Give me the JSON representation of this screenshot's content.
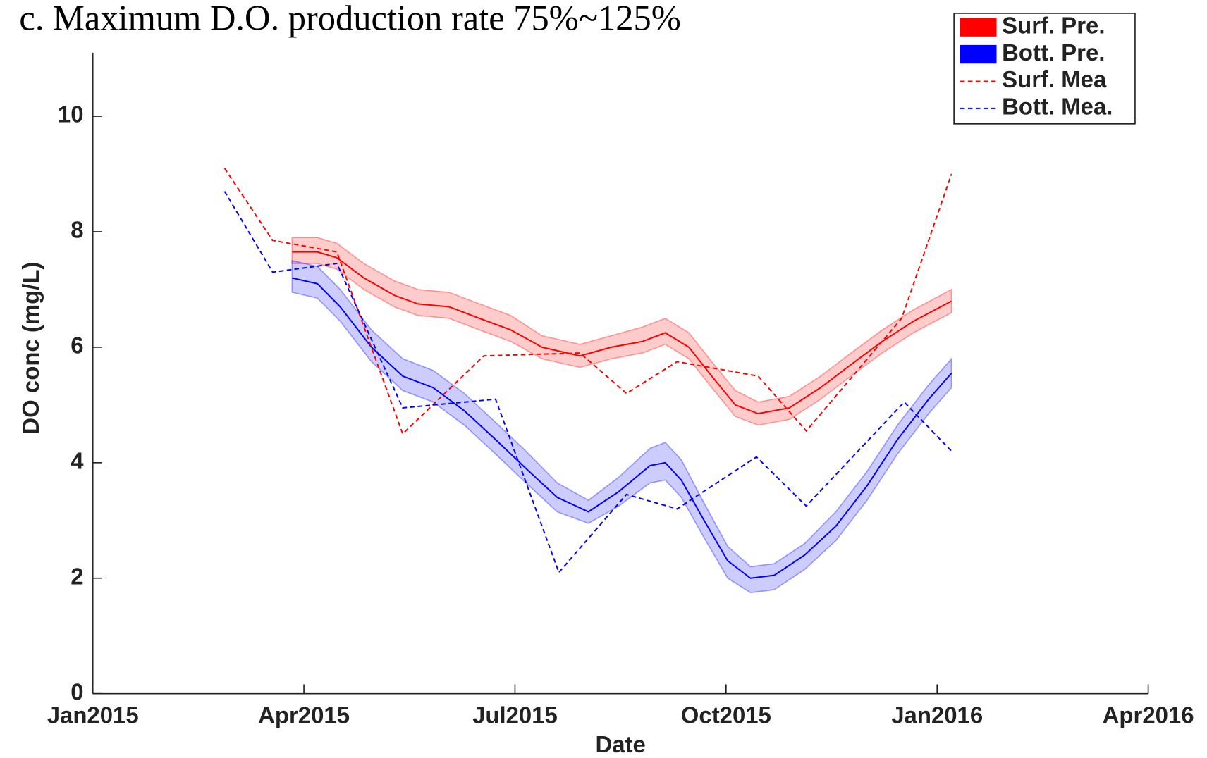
{
  "chart_data": {
    "type": "line",
    "title": "c. Maximum D.O. production rate 75%~125%",
    "xlabel": "Date",
    "ylabel": "DO conc (mg/L)",
    "xlim": [
      2015,
      2016.25
    ],
    "xticks": [
      {
        "value": 2015,
        "label": "Jan2015"
      },
      {
        "value": 2015.25,
        "label": "Apr2015"
      },
      {
        "value": 2015.5,
        "label": "Jul2015"
      },
      {
        "value": 2015.75,
        "label": "Oct2015"
      },
      {
        "value": 2016,
        "label": "Jan2016"
      },
      {
        "value": 2016.25,
        "label": "Apr2016"
      }
    ],
    "ylim": [
      0,
      11.1
    ],
    "yticks": [
      0,
      2,
      4,
      6,
      8,
      10
    ],
    "grid": false,
    "legend": "upper right",
    "series": [
      {
        "name": "Surf. Pre.",
        "color": "#ff0000",
        "style": "band",
        "x": [
          2015.236,
          2015.266,
          2015.289,
          2015.321,
          2015.357,
          2015.385,
          2015.422,
          2015.458,
          2015.495,
          2015.532,
          2015.577,
          2015.614,
          2015.651,
          2015.678,
          2015.706,
          2015.733,
          2015.761,
          2015.788,
          2015.825,
          2015.862,
          2015.898,
          2015.935,
          2015.972,
          2016.017
        ],
        "values": [
          7.65,
          7.65,
          7.55,
          7.2,
          6.9,
          6.75,
          6.7,
          6.5,
          6.3,
          6.0,
          5.85,
          6.0,
          6.1,
          6.25,
          6.0,
          5.5,
          5.0,
          4.85,
          4.95,
          5.3,
          5.7,
          6.1,
          6.45,
          6.8
        ],
        "lower": [
          7.45,
          7.45,
          7.35,
          7.0,
          6.7,
          6.55,
          6.5,
          6.3,
          6.1,
          5.8,
          5.65,
          5.8,
          5.9,
          6.05,
          5.8,
          5.3,
          4.8,
          4.65,
          4.75,
          5.1,
          5.5,
          5.9,
          6.25,
          6.6
        ],
        "upper": [
          7.9,
          7.9,
          7.8,
          7.45,
          7.15,
          7.0,
          6.95,
          6.75,
          6.55,
          6.2,
          6.05,
          6.2,
          6.35,
          6.5,
          6.25,
          5.75,
          5.25,
          5.05,
          5.15,
          5.5,
          5.9,
          6.3,
          6.65,
          7.0
        ]
      },
      {
        "name": "Bott. Pre.",
        "color": "#0000ff",
        "style": "band",
        "x": [
          2015.236,
          2015.266,
          2015.293,
          2015.33,
          2015.367,
          2015.403,
          2015.44,
          2015.477,
          2015.513,
          2015.55,
          2015.587,
          2015.623,
          2015.66,
          2015.678,
          2015.697,
          2015.724,
          2015.752,
          2015.779,
          2015.807,
          2015.843,
          2015.88,
          2015.917,
          2015.953,
          2015.99,
          2016.017
        ],
        "values": [
          7.2,
          7.1,
          6.7,
          6.0,
          5.5,
          5.3,
          4.9,
          4.4,
          3.9,
          3.4,
          3.15,
          3.5,
          3.95,
          4.0,
          3.7,
          3.0,
          2.3,
          2.0,
          2.05,
          2.4,
          2.9,
          3.6,
          4.4,
          5.1,
          5.55
        ],
        "lower": [
          6.95,
          6.85,
          6.45,
          5.75,
          5.25,
          5.05,
          4.65,
          4.15,
          3.65,
          3.15,
          2.95,
          3.25,
          3.65,
          3.7,
          3.4,
          2.7,
          2.0,
          1.75,
          1.8,
          2.15,
          2.65,
          3.35,
          4.15,
          4.85,
          5.3
        ],
        "upper": [
          7.5,
          7.4,
          7.0,
          6.3,
          5.8,
          5.6,
          5.2,
          4.7,
          4.2,
          3.65,
          3.35,
          3.75,
          4.25,
          4.35,
          4.05,
          3.3,
          2.55,
          2.2,
          2.25,
          2.6,
          3.15,
          3.85,
          4.65,
          5.35,
          5.8
        ]
      },
      {
        "name": "Surf. Mea",
        "color": "#ff0000",
        "style": "dashed",
        "x": [
          2015.156,
          2015.213,
          2015.289,
          2015.367,
          2015.463,
          2015.577,
          2015.632,
          2015.692,
          2015.788,
          2015.845,
          2015.958,
          2016.017
        ],
        "values": [
          9.1,
          7.85,
          7.65,
          4.5,
          5.85,
          5.9,
          5.2,
          5.75,
          5.5,
          4.55,
          6.5,
          9.0
        ]
      },
      {
        "name": "Bott. Mea.",
        "color": "#0000ff",
        "style": "dashed",
        "x": [
          2015.156,
          2015.213,
          2015.289,
          2015.367,
          2015.477,
          2015.552,
          2015.632,
          2015.692,
          2015.786,
          2015.845,
          2015.961,
          2016.017
        ],
        "values": [
          8.7,
          7.3,
          7.45,
          4.95,
          5.1,
          2.1,
          3.45,
          3.2,
          4.1,
          3.25,
          5.05,
          4.2
        ]
      }
    ]
  }
}
